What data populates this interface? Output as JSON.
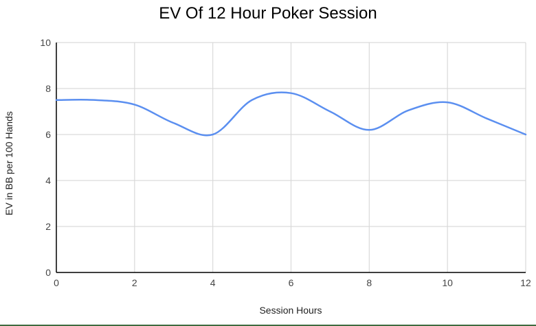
{
  "chart_data": {
    "type": "line",
    "title": "EV Of 12 Hour Poker Session",
    "xlabel": "Session Hours",
    "ylabel": "EV in BB per 100 Hands",
    "x": [
      0,
      1,
      2,
      3,
      4,
      5,
      6,
      7,
      8,
      9,
      10,
      11,
      12
    ],
    "series": [
      {
        "name": "EV",
        "color": "#5b8ff0",
        "values": [
          7.5,
          7.5,
          7.3,
          6.5,
          6.0,
          7.5,
          7.8,
          7.0,
          6.2,
          7.05,
          7.4,
          6.7,
          6.0
        ]
      }
    ],
    "xlim": [
      0,
      12
    ],
    "ylim": [
      0,
      10
    ],
    "xticks": [
      "0",
      "2",
      "4",
      "6",
      "8",
      "10",
      "12"
    ],
    "yticks": [
      "0",
      "2",
      "4",
      "6",
      "8",
      "10"
    ],
    "grid": true,
    "smooth": true,
    "legend": "none"
  }
}
